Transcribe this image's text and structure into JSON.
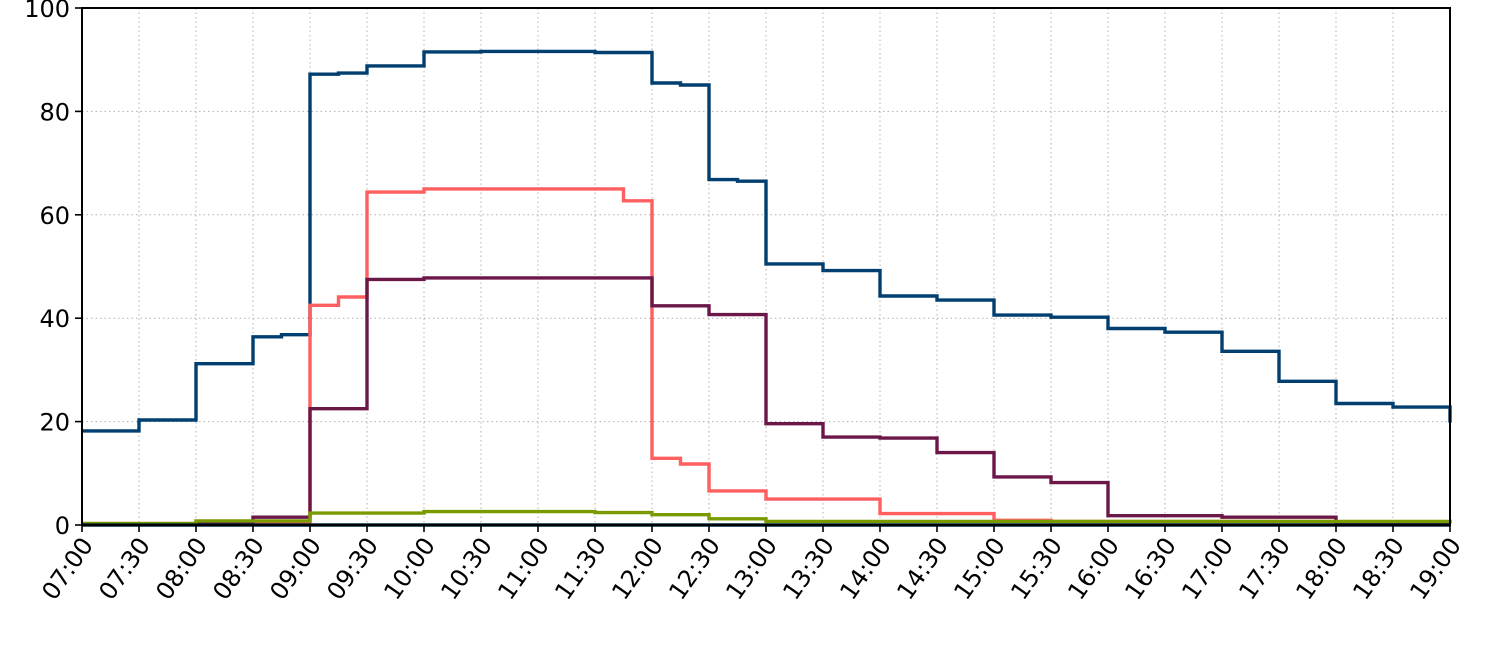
{
  "chart_data": {
    "type": "line",
    "step": "post",
    "grid": true,
    "title": "",
    "xlabel": "",
    "ylabel": "",
    "xlim": [
      "07:00",
      "19:00"
    ],
    "ylim": [
      0,
      100
    ],
    "yticks": [
      0,
      20,
      40,
      60,
      80,
      100
    ],
    "ytick_labels": [
      "0",
      "20",
      "40",
      "60",
      "80",
      "100"
    ],
    "xtick_labels": [
      "07:00",
      "07:30",
      "08:00",
      "08:30",
      "09:00",
      "09:30",
      "10:00",
      "10:30",
      "11:00",
      "11:30",
      "12:00",
      "12:30",
      "13:00",
      "13:30",
      "14:00",
      "14:30",
      "15:00",
      "15:30",
      "16:00",
      "16:30",
      "17:00",
      "17:30",
      "18:00",
      "18:30",
      "19:00"
    ],
    "series": [
      {
        "color": "#003f6f",
        "points": [
          [
            "07:00",
            18.2
          ],
          [
            "07:30",
            20.3
          ],
          [
            "08:00",
            31.2
          ],
          [
            "08:30",
            36.4
          ],
          [
            "08:45",
            36.8
          ],
          [
            "09:00",
            87.2
          ],
          [
            "09:15",
            87.4
          ],
          [
            "09:30",
            88.8
          ],
          [
            "10:00",
            91.5
          ],
          [
            "10:30",
            91.6
          ],
          [
            "11:00",
            91.6
          ],
          [
            "11:30",
            91.4
          ],
          [
            "12:00",
            85.5
          ],
          [
            "12:15",
            85.1
          ],
          [
            "12:30",
            66.8
          ],
          [
            "12:45",
            66.5
          ],
          [
            "13:00",
            50.5
          ],
          [
            "13:30",
            49.2
          ],
          [
            "14:00",
            44.3
          ],
          [
            "14:30",
            43.5
          ],
          [
            "15:00",
            40.6
          ],
          [
            "15:30",
            40.2
          ],
          [
            "16:00",
            38.0
          ],
          [
            "16:30",
            37.3
          ],
          [
            "17:00",
            33.6
          ],
          [
            "17:30",
            27.8
          ],
          [
            "18:00",
            23.5
          ],
          [
            "18:30",
            22.8
          ],
          [
            "19:00",
            19.8
          ]
        ]
      },
      {
        "color": "#ff5f5f",
        "points": [
          [
            "07:00",
            0.2
          ],
          [
            "09:00",
            42.5
          ],
          [
            "09:15",
            44.1
          ],
          [
            "09:30",
            64.4
          ],
          [
            "10:00",
            65.0
          ],
          [
            "11:45",
            62.7
          ],
          [
            "12:00",
            12.9
          ],
          [
            "12:15",
            11.8
          ],
          [
            "12:30",
            6.6
          ],
          [
            "13:00",
            5.0
          ],
          [
            "14:00",
            2.2
          ],
          [
            "15:00",
            0.9
          ],
          [
            "15:30",
            0.7
          ],
          [
            "18:00",
            0.2
          ],
          [
            "19:00",
            0.2
          ]
        ]
      },
      {
        "color": "#6b1748",
        "points": [
          [
            "07:00",
            0.2
          ],
          [
            "08:30",
            1.5
          ],
          [
            "09:00",
            22.5
          ],
          [
            "09:30",
            47.5
          ],
          [
            "10:00",
            47.8
          ],
          [
            "12:00",
            42.4
          ],
          [
            "12:30",
            40.7
          ],
          [
            "13:00",
            19.6
          ],
          [
            "13:30",
            17.0
          ],
          [
            "14:00",
            16.8
          ],
          [
            "14:30",
            14.0
          ],
          [
            "15:00",
            9.3
          ],
          [
            "15:30",
            8.2
          ],
          [
            "16:00",
            1.8
          ],
          [
            "17:00",
            1.5
          ],
          [
            "18:00",
            0.2
          ],
          [
            "19:00",
            0.2
          ]
        ]
      },
      {
        "color": "#7a9a01",
        "points": [
          [
            "07:00",
            0.3
          ],
          [
            "08:00",
            0.8
          ],
          [
            "09:00",
            2.3
          ],
          [
            "10:00",
            2.6
          ],
          [
            "11:30",
            2.4
          ],
          [
            "12:00",
            2.0
          ],
          [
            "12:30",
            1.2
          ],
          [
            "13:00",
            0.7
          ],
          [
            "19:00",
            0.3
          ]
        ]
      },
      {
        "color": "#00263a",
        "points": [
          [
            "07:00",
            0.0
          ],
          [
            "19:00",
            0.0
          ]
        ]
      }
    ]
  }
}
